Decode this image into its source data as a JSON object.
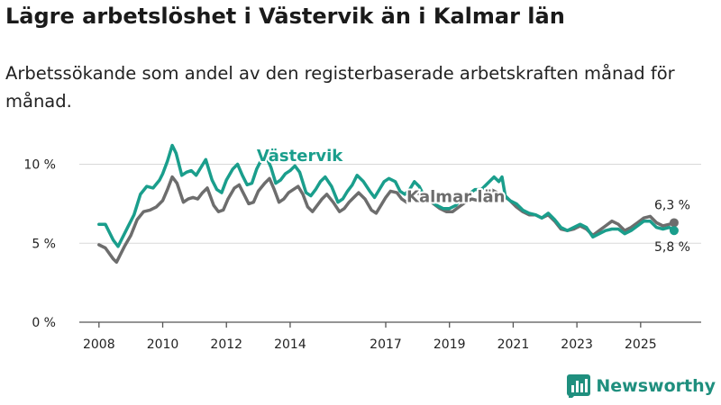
{
  "header": {
    "title": "Lägre arbetslöshet i Västervik än i Kalmar län",
    "subtitle": "Arbetssökande som andel av den registerbaserade arbetskraften månad för månad."
  },
  "brand": {
    "name": "Newsworthy",
    "icon": "bar-chart-logo-icon",
    "color": "#1f8f7e"
  },
  "chart_data": {
    "type": "line",
    "title": "Lägre arbetslöshet i Västervik än i Kalmar län",
    "subtitle": "Arbetssökande som andel av den registerbaserade arbetskraften månad för månad.",
    "xlabel": "",
    "ylabel": "",
    "x_range": [
      2008,
      2026.2
    ],
    "ylim": [
      0,
      11
    ],
    "grid": true,
    "x_ticks": [
      {
        "value": 2008,
        "label": "2008"
      },
      {
        "value": 2010,
        "label": "2010"
      },
      {
        "value": 2012,
        "label": "2012"
      },
      {
        "value": 2014,
        "label": "2014"
      },
      {
        "value": 2017,
        "label": "2017"
      },
      {
        "value": 2019,
        "label": "2019"
      },
      {
        "value": 2021,
        "label": "2021"
      },
      {
        "value": 2023,
        "label": "2023"
      },
      {
        "value": 2025,
        "label": "2025"
      }
    ],
    "y_ticks": [
      {
        "value": 0,
        "label": "0 %"
      },
      {
        "value": 5,
        "label": "5 %"
      },
      {
        "value": 10,
        "label": "10 %"
      }
    ],
    "series": [
      {
        "name": "Västervik",
        "color": "#1a9e8c",
        "label_at": [
          2014.3,
          10.2
        ],
        "end_label": "5,8 %",
        "points": [
          [
            2008.0,
            6.2
          ],
          [
            2008.2,
            6.2
          ],
          [
            2008.45,
            5.2
          ],
          [
            2008.6,
            4.8
          ],
          [
            2008.9,
            6.0
          ],
          [
            2009.1,
            6.8
          ],
          [
            2009.3,
            8.1
          ],
          [
            2009.5,
            8.6
          ],
          [
            2009.7,
            8.5
          ],
          [
            2009.9,
            9.0
          ],
          [
            2010.0,
            9.4
          ],
          [
            2010.15,
            10.2
          ],
          [
            2010.3,
            11.2
          ],
          [
            2010.42,
            10.7
          ],
          [
            2010.6,
            9.3
          ],
          [
            2010.75,
            9.5
          ],
          [
            2010.9,
            9.6
          ],
          [
            2011.05,
            9.3
          ],
          [
            2011.2,
            9.8
          ],
          [
            2011.35,
            10.3
          ],
          [
            2011.55,
            9.0
          ],
          [
            2011.7,
            8.4
          ],
          [
            2011.85,
            8.2
          ],
          [
            2012.0,
            9.0
          ],
          [
            2012.2,
            9.7
          ],
          [
            2012.35,
            10.0
          ],
          [
            2012.5,
            9.3
          ],
          [
            2012.65,
            8.7
          ],
          [
            2012.8,
            8.8
          ],
          [
            2012.95,
            9.7
          ],
          [
            2013.1,
            10.3
          ],
          [
            2013.25,
            10.5
          ],
          [
            2013.4,
            9.8
          ],
          [
            2013.55,
            8.8
          ],
          [
            2013.7,
            9.0
          ],
          [
            2013.85,
            9.4
          ],
          [
            2014.0,
            9.6
          ],
          [
            2014.15,
            9.9
          ],
          [
            2014.3,
            9.5
          ],
          [
            2014.5,
            8.2
          ],
          [
            2014.65,
            8.0
          ],
          [
            2014.8,
            8.4
          ],
          [
            2014.95,
            8.9
          ],
          [
            2015.1,
            9.2
          ],
          [
            2015.3,
            8.6
          ],
          [
            2015.5,
            7.6
          ],
          [
            2015.65,
            7.8
          ],
          [
            2015.8,
            8.3
          ],
          [
            2015.95,
            8.7
          ],
          [
            2016.1,
            9.3
          ],
          [
            2016.3,
            8.9
          ],
          [
            2016.5,
            8.3
          ],
          [
            2016.65,
            7.9
          ],
          [
            2016.8,
            8.4
          ],
          [
            2016.95,
            8.9
          ],
          [
            2017.1,
            9.1
          ],
          [
            2017.3,
            8.9
          ],
          [
            2017.45,
            8.3
          ],
          [
            2017.6,
            8.1
          ],
          [
            2017.75,
            8.4
          ],
          [
            2017.9,
            8.9
          ],
          [
            2018.05,
            8.6
          ],
          [
            2018.2,
            8.0
          ],
          [
            2018.4,
            7.7
          ],
          [
            2018.6,
            7.4
          ],
          [
            2018.8,
            7.2
          ],
          [
            2019.0,
            7.2
          ],
          [
            2019.2,
            7.4
          ],
          [
            2019.4,
            7.9
          ],
          [
            2019.6,
            8.1
          ],
          [
            2019.8,
            8.4
          ],
          [
            2020.0,
            8.4
          ],
          [
            2020.2,
            8.8
          ],
          [
            2020.4,
            9.2
          ],
          [
            2020.55,
            8.9
          ],
          [
            2020.65,
            9.2
          ],
          [
            2020.75,
            8.0
          ],
          [
            2020.9,
            7.7
          ],
          [
            2021.1,
            7.5
          ],
          [
            2021.3,
            7.1
          ],
          [
            2021.5,
            6.9
          ],
          [
            2021.7,
            6.8
          ],
          [
            2021.9,
            6.6
          ],
          [
            2022.1,
            6.9
          ],
          [
            2022.3,
            6.5
          ],
          [
            2022.5,
            6.0
          ],
          [
            2022.7,
            5.8
          ],
          [
            2022.9,
            6.0
          ],
          [
            2023.1,
            6.2
          ],
          [
            2023.3,
            6.0
          ],
          [
            2023.5,
            5.4
          ],
          [
            2023.7,
            5.6
          ],
          [
            2023.9,
            5.8
          ],
          [
            2024.1,
            5.9
          ],
          [
            2024.3,
            5.9
          ],
          [
            2024.5,
            5.6
          ],
          [
            2024.7,
            5.8
          ],
          [
            2024.9,
            6.1
          ],
          [
            2025.1,
            6.4
          ],
          [
            2025.3,
            6.4
          ],
          [
            2025.5,
            6.0
          ],
          [
            2025.7,
            5.9
          ],
          [
            2025.9,
            6.0
          ],
          [
            2026.05,
            5.8
          ]
        ]
      },
      {
        "name": "Kalmar län",
        "color": "#6d6d6d",
        "label_at": [
          2019.2,
          7.6
        ],
        "end_label": "6,3 %",
        "points": [
          [
            2008.0,
            4.9
          ],
          [
            2008.2,
            4.7
          ],
          [
            2008.45,
            4.0
          ],
          [
            2008.55,
            3.8
          ],
          [
            2008.8,
            4.8
          ],
          [
            2009.0,
            5.5
          ],
          [
            2009.2,
            6.5
          ],
          [
            2009.4,
            7.0
          ],
          [
            2009.6,
            7.1
          ],
          [
            2009.8,
            7.3
          ],
          [
            2010.0,
            7.7
          ],
          [
            2010.15,
            8.4
          ],
          [
            2010.3,
            9.2
          ],
          [
            2010.45,
            8.8
          ],
          [
            2010.65,
            7.6
          ],
          [
            2010.8,
            7.8
          ],
          [
            2010.95,
            7.9
          ],
          [
            2011.1,
            7.8
          ],
          [
            2011.25,
            8.2
          ],
          [
            2011.4,
            8.5
          ],
          [
            2011.6,
            7.4
          ],
          [
            2011.75,
            7.0
          ],
          [
            2011.9,
            7.1
          ],
          [
            2012.05,
            7.8
          ],
          [
            2012.25,
            8.5
          ],
          [
            2012.4,
            8.7
          ],
          [
            2012.55,
            8.1
          ],
          [
            2012.7,
            7.5
          ],
          [
            2012.85,
            7.6
          ],
          [
            2013.0,
            8.3
          ],
          [
            2013.2,
            8.8
          ],
          [
            2013.35,
            9.1
          ],
          [
            2013.5,
            8.4
          ],
          [
            2013.65,
            7.6
          ],
          [
            2013.8,
            7.8
          ],
          [
            2013.95,
            8.2
          ],
          [
            2014.1,
            8.4
          ],
          [
            2014.25,
            8.6
          ],
          [
            2014.4,
            8.1
          ],
          [
            2014.55,
            7.3
          ],
          [
            2014.7,
            7.0
          ],
          [
            2014.85,
            7.4
          ],
          [
            2015.0,
            7.8
          ],
          [
            2015.15,
            8.1
          ],
          [
            2015.35,
            7.6
          ],
          [
            2015.55,
            7.0
          ],
          [
            2015.7,
            7.2
          ],
          [
            2015.85,
            7.6
          ],
          [
            2016.0,
            7.9
          ],
          [
            2016.15,
            8.2
          ],
          [
            2016.35,
            7.8
          ],
          [
            2016.55,
            7.1
          ],
          [
            2016.7,
            6.9
          ],
          [
            2016.85,
            7.4
          ],
          [
            2017.0,
            7.9
          ],
          [
            2017.15,
            8.3
          ],
          [
            2017.35,
            8.2
          ],
          [
            2017.5,
            7.8
          ],
          [
            2017.65,
            7.6
          ],
          [
            2017.8,
            7.9
          ],
          [
            2017.95,
            8.2
          ],
          [
            2018.1,
            8.1
          ],
          [
            2018.3,
            7.8
          ],
          [
            2018.5,
            7.5
          ],
          [
            2018.7,
            7.2
          ],
          [
            2018.9,
            7.0
          ],
          [
            2019.1,
            7.0
          ],
          [
            2019.3,
            7.3
          ],
          [
            2019.5,
            7.6
          ],
          [
            2019.7,
            7.8
          ],
          [
            2019.9,
            7.7
          ],
          [
            2020.1,
            8.0
          ],
          [
            2020.3,
            8.4
          ],
          [
            2020.5,
            8.2
          ],
          [
            2020.7,
            8.0
          ],
          [
            2020.9,
            7.7
          ],
          [
            2021.1,
            7.3
          ],
          [
            2021.3,
            7.0
          ],
          [
            2021.5,
            6.8
          ],
          [
            2021.7,
            6.8
          ],
          [
            2021.9,
            6.6
          ],
          [
            2022.1,
            6.8
          ],
          [
            2022.3,
            6.4
          ],
          [
            2022.5,
            5.9
          ],
          [
            2022.7,
            5.8
          ],
          [
            2022.9,
            5.9
          ],
          [
            2023.1,
            6.1
          ],
          [
            2023.3,
            5.9
          ],
          [
            2023.5,
            5.5
          ],
          [
            2023.7,
            5.8
          ],
          [
            2023.9,
            6.1
          ],
          [
            2024.1,
            6.4
          ],
          [
            2024.3,
            6.2
          ],
          [
            2024.5,
            5.8
          ],
          [
            2024.7,
            6.0
          ],
          [
            2024.9,
            6.3
          ],
          [
            2025.1,
            6.6
          ],
          [
            2025.3,
            6.7
          ],
          [
            2025.5,
            6.3
          ],
          [
            2025.7,
            6.1
          ],
          [
            2025.9,
            6.2
          ],
          [
            2026.05,
            6.3
          ]
        ]
      }
    ]
  }
}
